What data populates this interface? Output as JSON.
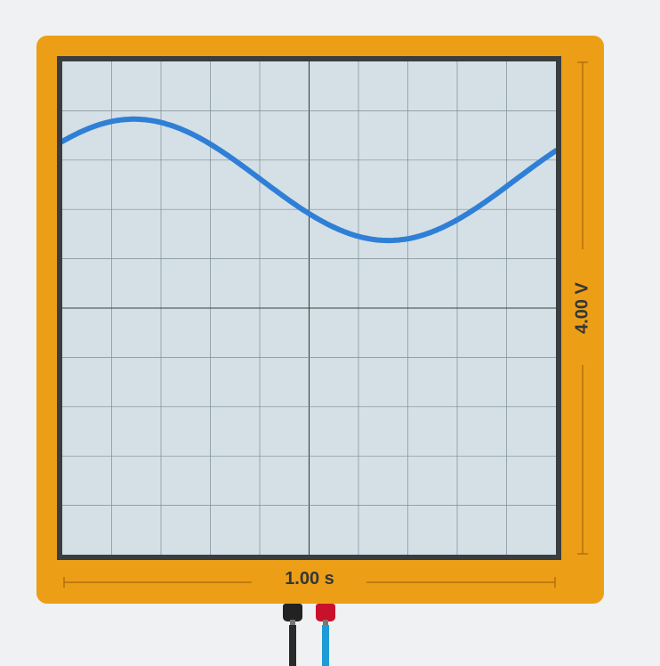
{
  "oscilloscope": {
    "body_color": "#ec9f16",
    "screen_color": "#d4e0e6",
    "trace_color": "#2f7fd6",
    "time_scale_label": "1.00 s",
    "voltage_scale_label": "4.00 V",
    "grid": {
      "divisions_x": 10,
      "divisions_y": 10
    },
    "trace": {
      "type": "sine",
      "amplitude_divisions": 1.23,
      "offset_divisions": 2.6,
      "period_divisions": 10.3,
      "phase_rad": -2.55
    }
  },
  "probes": [
    {
      "name": "black-probe",
      "plug_color": "#222222",
      "wire_color": "#2a2a2a"
    },
    {
      "name": "red-probe",
      "plug_color": "#c8122b",
      "wire_color": "#1e9ad6"
    }
  ]
}
